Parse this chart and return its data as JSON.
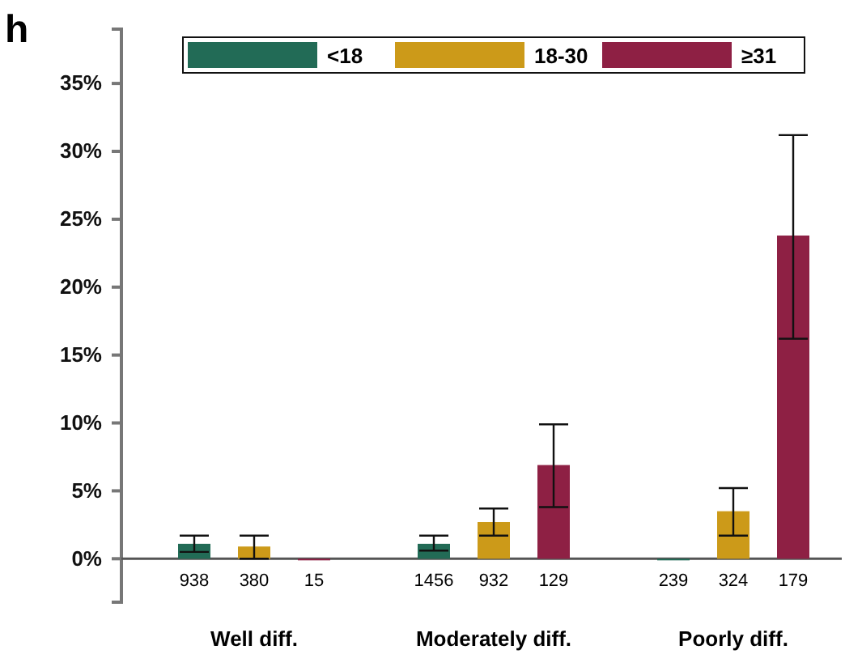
{
  "chart_data": {
    "type": "bar",
    "title": "h",
    "categories": [
      "Well diff.",
      "Moderately diff.",
      "Poorly diff."
    ],
    "series": [
      {
        "name": "<18",
        "color": "#226b56",
        "values": [
          1.1,
          1.1,
          0
        ],
        "errors": [
          [
            0.5,
            1.7
          ],
          [
            0.6,
            1.7
          ],
          null
        ]
      },
      {
        "name": "18-30",
        "color": "#cc9a19",
        "values": [
          0.9,
          2.7,
          3.5
        ],
        "errors": [
          [
            0,
            1.7
          ],
          [
            1.7,
            3.7
          ],
          [
            1.7,
            5.2
          ]
        ]
      },
      {
        "name": "≥31",
        "color": "#8e2044",
        "values": [
          0,
          6.9,
          23.8
        ],
        "errors": [
          null,
          [
            3.8,
            9.9
          ],
          [
            16.2,
            31.2
          ]
        ]
      }
    ],
    "ylim": [
      -3.2,
      39
    ],
    "yticks": [
      {
        "value": 0,
        "label": "0%"
      },
      {
        "value": 5,
        "label": "5%"
      },
      {
        "value": 10,
        "label": "10%"
      },
      {
        "value": 15,
        "label": "15%"
      },
      {
        "value": 20,
        "label": "20%"
      },
      {
        "value": 25,
        "label": "25%"
      },
      {
        "value": 30,
        "label": "30%"
      },
      {
        "value": 35,
        "label": "35%"
      }
    ],
    "ref_lines": [
      {
        "axis": "y",
        "value": 0,
        "color": "#555555"
      }
    ],
    "annotations": [
      "938",
      "380",
      "15",
      "1456",
      "932",
      "129",
      "239",
      "324",
      "179"
    ],
    "legend": "top",
    "grid": false
  }
}
